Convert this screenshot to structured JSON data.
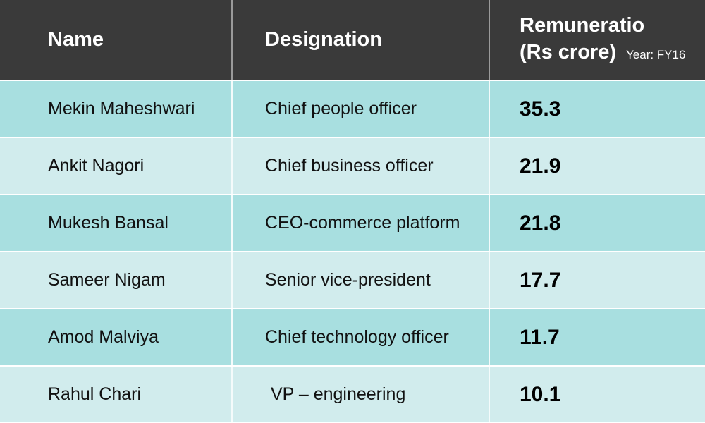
{
  "chart_data": {
    "type": "table",
    "columns": [
      "Name",
      "Designation",
      "Remuneratio (Rs crore)"
    ],
    "header_note": "Year: FY16",
    "rows": [
      {
        "name": "Mekin Maheshwari",
        "designation": "Chief people officer",
        "value": "35.3"
      },
      {
        "name": "Ankit Nagori",
        "designation": "Chief business officer",
        "value": "21.9"
      },
      {
        "name": "Mukesh Bansal",
        "designation": "CEO-commerce platform",
        "value": "21.8"
      },
      {
        "name": "Sameer Nigam",
        "designation": "Senior vice-president",
        "value": "17.7"
      },
      {
        "name": "Amod Malviya",
        "designation": "Chief technology officer",
        "value": "11.7"
      },
      {
        "name": "Rahul Chari",
        "designation": "VP – engineering",
        "value": "10.1"
      }
    ],
    "colors": {
      "header": "#3a3a3a",
      "row_odd": "#a8dfe0",
      "row_even": "#d1eced"
    }
  },
  "header": {
    "col1": "Name",
    "col2": "Designation",
    "col3_line1": "Remuneratio",
    "col3_line2": "(Rs crore)",
    "note": "Year: FY16"
  }
}
